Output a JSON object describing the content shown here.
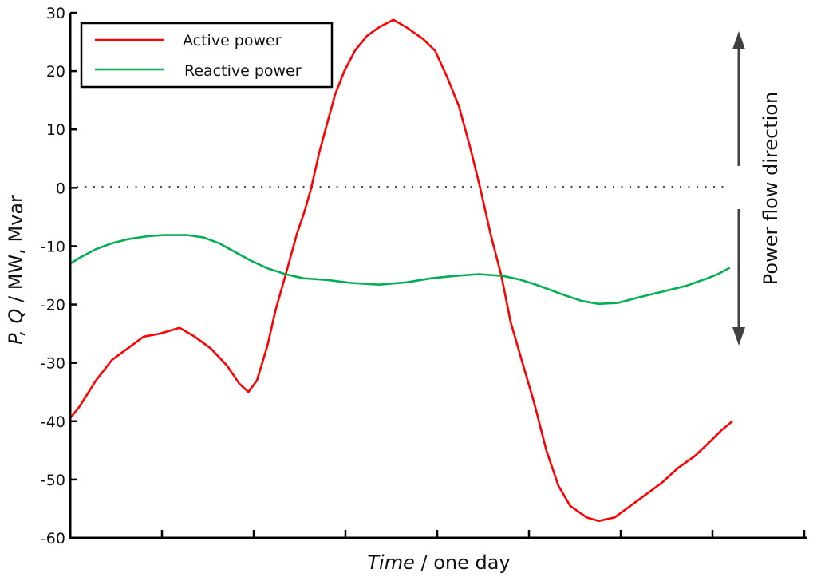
{
  "chart_data": {
    "type": "line",
    "title": "",
    "xlabel": "Time / one day",
    "xlabel_italic_part": "Time",
    "xlabel_rest": " / one day",
    "ylabel": "P, Q / MW, Mvar",
    "ylabel_italic_part": "P, Q",
    "ylabel_rest": " / MW, Mvar",
    "ylim": [
      -60,
      30
    ],
    "yticks": [
      30,
      20,
      10,
      0,
      -10,
      -20,
      -30,
      -40,
      -50,
      -60
    ],
    "x_tick_count": 8,
    "x_tick_labels": [],
    "grid": false,
    "reference_line": {
      "y": 0,
      "style": "dotted"
    },
    "legend": {
      "position": "upper-left",
      "entries": [
        {
          "label": "Active power",
          "color": "#ff0000"
        },
        {
          "label": "Reactive power",
          "color": "#00b050"
        }
      ]
    },
    "annotation": {
      "text": "Power flow direction",
      "arrows": [
        "up",
        "down"
      ],
      "color": "#404040"
    },
    "x_unit": "fraction of day (0-1)",
    "series": [
      {
        "name": "Active power",
        "color": "#ff0000",
        "x": [
          0.0,
          0.014,
          0.039,
          0.063,
          0.087,
          0.111,
          0.135,
          0.165,
          0.188,
          0.212,
          0.237,
          0.255,
          0.269,
          0.282,
          0.298,
          0.31,
          0.325,
          0.342,
          0.354,
          0.364,
          0.376,
          0.388,
          0.4,
          0.414,
          0.43,
          0.448,
          0.466,
          0.488,
          0.508,
          0.533,
          0.551,
          0.569,
          0.587,
          0.605,
          0.619,
          0.635,
          0.651,
          0.665,
          0.683,
          0.701,
          0.719,
          0.737,
          0.755,
          0.78,
          0.798,
          0.822,
          0.846,
          0.87,
          0.894,
          0.918,
          0.943,
          0.966,
          0.984,
          1.0
        ],
        "values": [
          -39.5,
          -37.5,
          -33,
          -29.5,
          -27.5,
          -25.5,
          -25,
          -24,
          -25.5,
          -27.5,
          -30.5,
          -33.5,
          -35,
          -33,
          -27,
          -21,
          -15,
          -8,
          -4,
          0,
          6,
          11,
          16,
          20,
          23.5,
          26,
          27.5,
          28.8,
          27.5,
          25.5,
          23.5,
          19,
          14,
          6.5,
          0,
          -8,
          -15,
          -23,
          -30,
          -37,
          -45,
          -51,
          -54.5,
          -56.5,
          -57.1,
          -56.5,
          -54.5,
          -52.5,
          -50.5,
          -48,
          -46,
          -43.5,
          -41.5,
          -40
        ]
      },
      {
        "name": "Reactive power",
        "color": "#00b050",
        "x": [
          0.0,
          0.014,
          0.039,
          0.063,
          0.087,
          0.117,
          0.141,
          0.177,
          0.201,
          0.225,
          0.249,
          0.273,
          0.298,
          0.325,
          0.352,
          0.388,
          0.424,
          0.466,
          0.508,
          0.545,
          0.581,
          0.617,
          0.653,
          0.678,
          0.701,
          0.725,
          0.749,
          0.773,
          0.798,
          0.828,
          0.858,
          0.894,
          0.93,
          0.96,
          0.978,
          0.996
        ],
        "values": [
          -13,
          -12,
          -10.5,
          -9.5,
          -8.8,
          -8.3,
          -8.1,
          -8.1,
          -8.5,
          -9.5,
          -11,
          -12.5,
          -13.8,
          -14.8,
          -15.5,
          -15.8,
          -16.3,
          -16.6,
          -16.2,
          -15.5,
          -15.1,
          -14.8,
          -15.1,
          -15.7,
          -16.5,
          -17.5,
          -18.5,
          -19.4,
          -19.9,
          -19.7,
          -18.8,
          -17.8,
          -16.8,
          -15.6,
          -14.8,
          -13.7
        ]
      }
    ]
  }
}
